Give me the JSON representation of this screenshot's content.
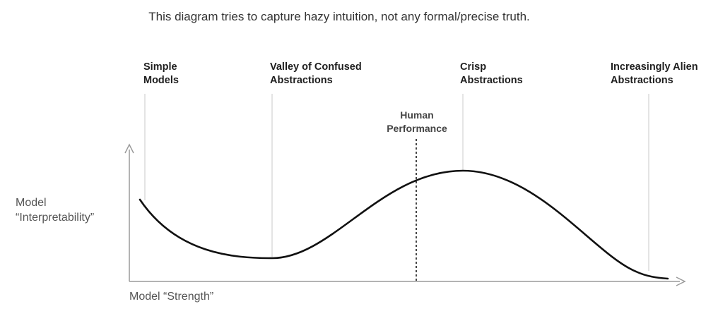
{
  "caption": "This diagram tries to capture hazy intuition, not any formal/precise truth.",
  "stages": [
    {
      "line1": "Simple",
      "line2": "Models"
    },
    {
      "line1": "Valley of Confused",
      "line2": "Abstractions"
    },
    {
      "line1": "Crisp",
      "line2": "Abstractions"
    },
    {
      "line1": "Increasingly Alien",
      "line2": "Abstractions"
    }
  ],
  "human_performance": {
    "line1": "Human",
    "line2": "Performance"
  },
  "y_axis": {
    "line1": "Model",
    "line2": "“Interpretability”"
  },
  "x_axis": {
    "label": "Model “Strength”"
  },
  "colors": {
    "curve": "#111111",
    "axis": "#9a9a9a",
    "guide_lines": "#dcdcdc",
    "human_line": "#333333"
  }
}
